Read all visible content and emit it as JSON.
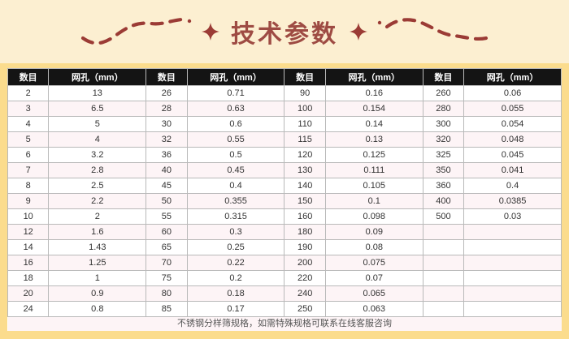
{
  "page": {
    "title": "技术参数",
    "footer_note": "不锈钢分样筛规格，如需特殊规格可联系在线客服咨询"
  },
  "colors": {
    "background_top": "#FCEFD1",
    "panel_yellow": "#FBDC8D",
    "title_red": "#9E4B43",
    "decoration_red": "#9B3B35",
    "header_bg": "#141414",
    "header_text": "#FFFFFF",
    "row_alt_pink": "#FDF4F6",
    "border_gray": "#B9B9B9"
  },
  "icons": {
    "left_decoration": "dashed-wave-line",
    "right_decoration": "dashed-wave-line",
    "star": "four-pointed-star"
  },
  "table": {
    "header_labels": [
      "数目",
      "网孔（mm）",
      "数目",
      "网孔（mm）",
      "数目",
      "网孔（mm）",
      "数目",
      "网孔（mm）"
    ],
    "rows": [
      [
        "2",
        "13",
        "26",
        "0.71",
        "90",
        "0.16",
        "260",
        "0.06"
      ],
      [
        "3",
        "6.5",
        "28",
        "0.63",
        "100",
        "0.154",
        "280",
        "0.055"
      ],
      [
        "4",
        "5",
        "30",
        "0.6",
        "110",
        "0.14",
        "300",
        "0.054"
      ],
      [
        "5",
        "4",
        "32",
        "0.55",
        "115",
        "0.13",
        "320",
        "0.048"
      ],
      [
        "6",
        "3.2",
        "36",
        "0.5",
        "120",
        "0.125",
        "325",
        "0.045"
      ],
      [
        "7",
        "2.8",
        "40",
        "0.45",
        "130",
        "0.111",
        "350",
        "0.041"
      ],
      [
        "8",
        "2.5",
        "45",
        "0.4",
        "140",
        "0.105",
        "360",
        "0.4"
      ],
      [
        "9",
        "2.2",
        "50",
        "0.355",
        "150",
        "0.1",
        "400",
        "0.0385"
      ],
      [
        "10",
        "2",
        "55",
        "0.315",
        "160",
        "0.098",
        "500",
        "0.03"
      ],
      [
        "12",
        "1.6",
        "60",
        "0.3",
        "180",
        "0.09",
        "",
        ""
      ],
      [
        "14",
        "1.43",
        "65",
        "0.25",
        "190",
        "0.08",
        "",
        ""
      ],
      [
        "16",
        "1.25",
        "70",
        "0.22",
        "200",
        "0.075",
        "",
        ""
      ],
      [
        "18",
        "1",
        "75",
        "0.2",
        "220",
        "0.07",
        "",
        ""
      ],
      [
        "20",
        "0.9",
        "80",
        "0.18",
        "240",
        "0.065",
        "",
        ""
      ],
      [
        "24",
        "0.8",
        "85",
        "0.17",
        "250",
        "0.063",
        "",
        ""
      ]
    ]
  }
}
